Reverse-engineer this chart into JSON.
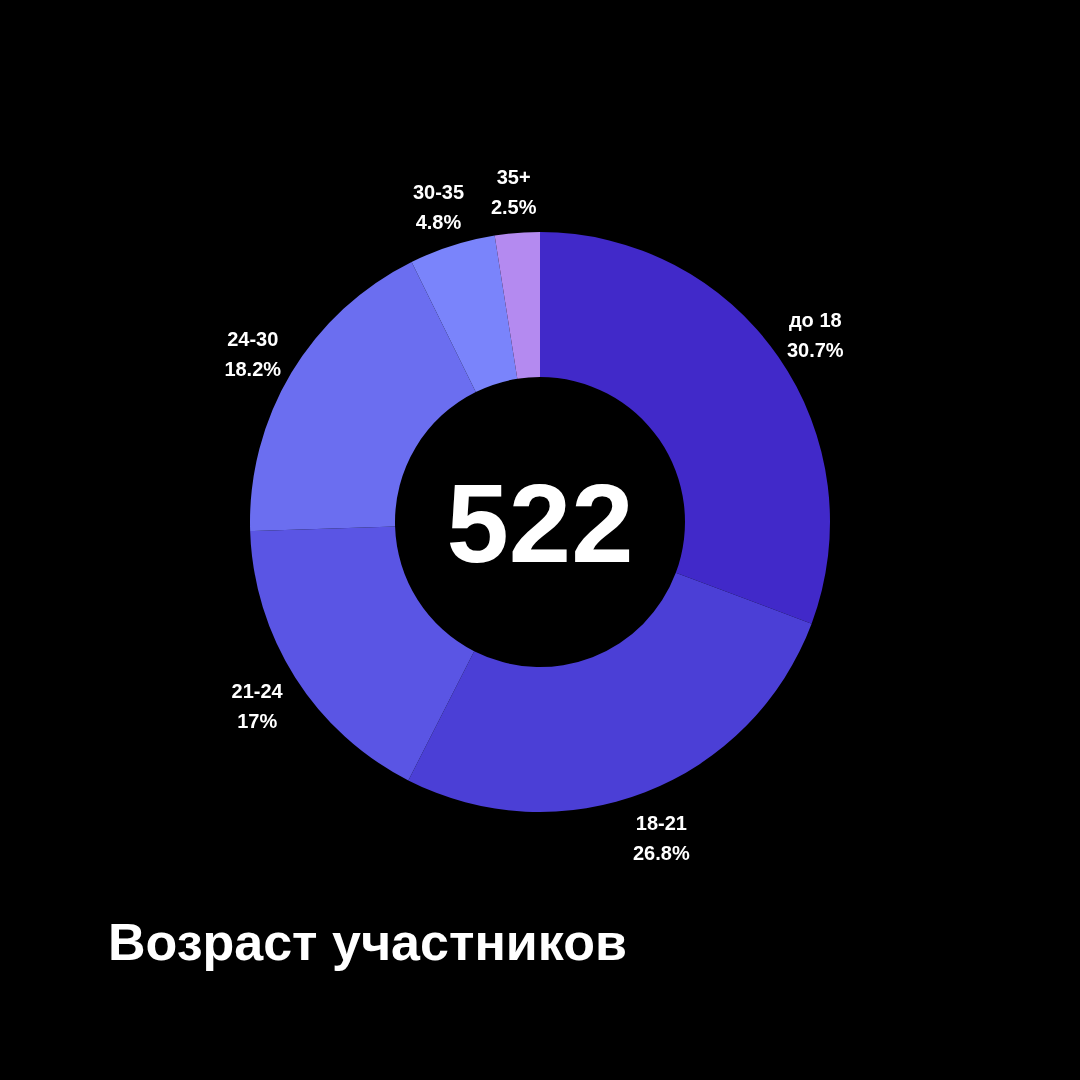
{
  "chart_data": {
    "type": "donut",
    "title": "Возраст участников",
    "categories": [
      "до 18",
      "18-21",
      "21-24",
      "24-30",
      "30-35",
      "35+"
    ],
    "values": [
      30.7,
      26.8,
      17,
      18.2,
      4.8,
      2.5
    ],
    "colors": [
      "#4129c9",
      "#4b3fd6",
      "#5a55e4",
      "#6b6ef0",
      "#7a84fb",
      "#b48af0"
    ],
    "value_labels": [
      "30.7%",
      "26.8%",
      "17%",
      "18.2%",
      "4.8%",
      "2.5%"
    ],
    "annotations": [
      "522"
    ]
  }
}
